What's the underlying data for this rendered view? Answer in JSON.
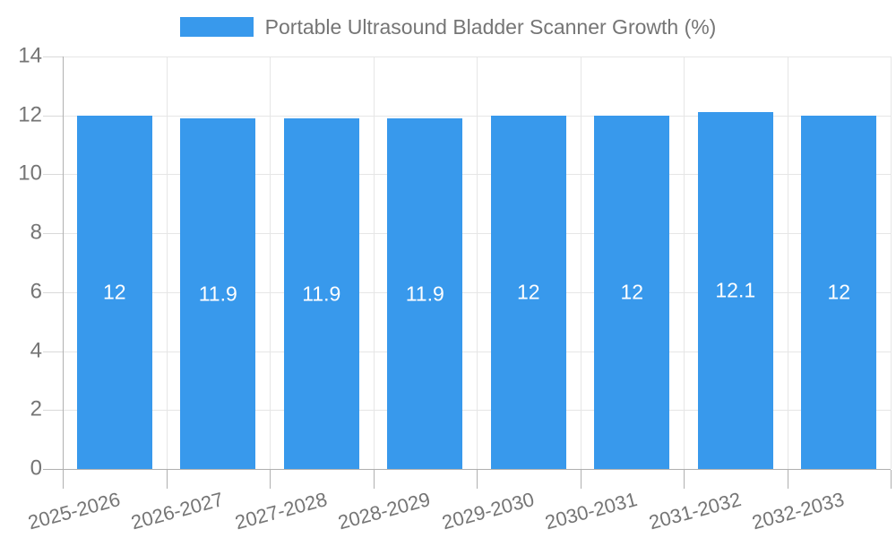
{
  "legend": {
    "label": "Portable Ultrasound Bladder Scanner Growth (%)"
  },
  "colors": {
    "bar": "#3899EC",
    "grid": "#E6E6E6",
    "axis": "#B0B0B0",
    "tick": "#D9D9D9",
    "text": "#757575",
    "value_label": "#FFFFFF",
    "background": "#FFFFFF"
  },
  "chart_data": {
    "type": "bar",
    "title": "Portable Ultrasound Bladder Scanner Growth (%)",
    "categories": [
      "2025-2026",
      "2026-2027",
      "2027-2028",
      "2028-2029",
      "2029-2030",
      "2030-2031",
      "2031-2032",
      "2032-2033"
    ],
    "values": [
      12,
      11.9,
      11.9,
      11.9,
      12,
      12,
      12.1,
      12
    ],
    "value_labels": [
      "12",
      "11.9",
      "11.9",
      "11.9",
      "12",
      "12",
      "12.1",
      "12"
    ],
    "xlabel": "",
    "ylabel": "",
    "ylim": [
      0,
      14
    ],
    "yticks": [
      0,
      2,
      4,
      6,
      8,
      10,
      12,
      14
    ],
    "grid": true,
    "legend_position": "top",
    "x_label_rotation_deg": -15
  }
}
